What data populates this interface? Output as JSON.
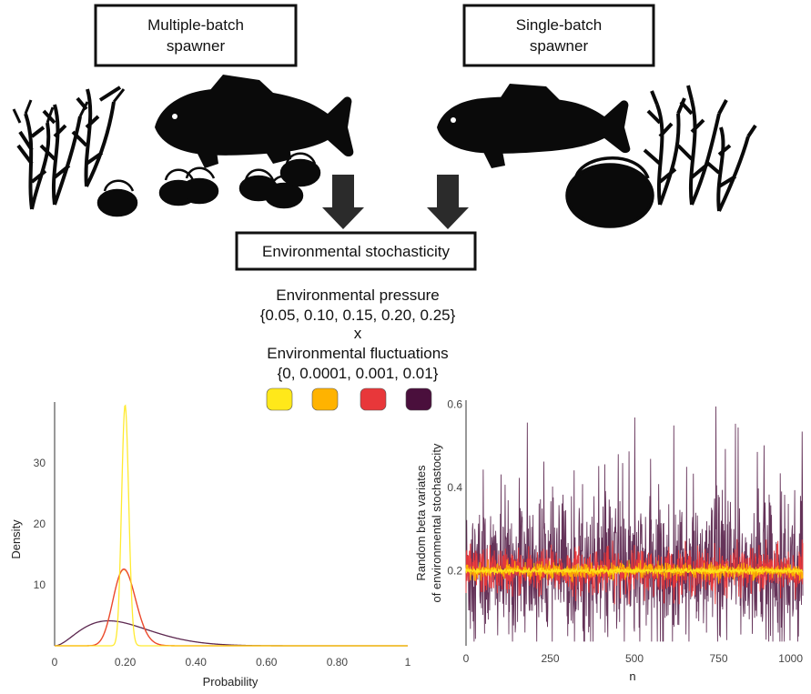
{
  "labels": {
    "multi_batch": [
      "Multiple-batch",
      "spawner"
    ],
    "single_batch": [
      "Single-batch",
      "spawner"
    ],
    "env_stochasticity": "Environmental stochasticity",
    "env_pressure": "Environmental pressure",
    "env_pressure_values": "{0.05, 0.10, 0.15, 0.20, 0.25}",
    "times_symbol": "x",
    "env_fluctuations": "Environmental fluctuations",
    "env_fluctuations_values": "{0, 0.0001, 0.001, 0.01}"
  },
  "palette": {
    "swatches": [
      "#ffe81a",
      "#ffb300",
      "#e8373a",
      "#4a0f3c"
    ],
    "silhouette": "#0a0a0a",
    "arrow": "#2b2b2b"
  },
  "chart_data": [
    {
      "type": "line",
      "xlabel": "Probability",
      "ylabel": "Density",
      "xlim": [
        0,
        1
      ],
      "ylim": [
        0,
        40
      ],
      "x_ticks": [
        0,
        0.2,
        0.4,
        0.6,
        0.8,
        1
      ],
      "x_tick_labels": [
        "0",
        "0.20",
        "0.40",
        "0.60",
        "0.80",
        "1"
      ],
      "y_ticks": [
        10,
        20,
        30
      ],
      "y_tick_labels": [
        "10",
        "20",
        "30"
      ],
      "grid": false,
      "series": [
        {
          "color": "#ffe81a",
          "mean": 0.2,
          "peak_density": 39.5
        },
        {
          "color": "#ffb300",
          "mean": 0.2,
          "peak_density": 12.5
        },
        {
          "color": "#e8373a",
          "mean": 0.2,
          "peak_density": 12.6
        },
        {
          "color": "#4a0f3c",
          "mean": 0.2,
          "peak_density": 4.1
        }
      ]
    },
    {
      "type": "line",
      "xlabel": "n",
      "ylabel": [
        "Random beta variates",
        "of environmental stochastocity"
      ],
      "xlim": [
        0,
        1000
      ],
      "ylim": [
        0.02,
        0.61
      ],
      "x_ticks": [
        0,
        250,
        500,
        750,
        1000
      ],
      "x_tick_labels": [
        "0",
        "250",
        "500",
        "750",
        "1000"
      ],
      "y_ticks": [
        0.2,
        0.4,
        0.6
      ],
      "y_tick_labels": [
        "0.2",
        "0.4",
        "0.6"
      ],
      "grid": false,
      "series": [
        {
          "color": "#4a0f3c",
          "mean": 0.2,
          "range": [
            0.03,
            0.6
          ]
        },
        {
          "color": "#e8373a",
          "mean": 0.2,
          "range": [
            0.12,
            0.3
          ]
        },
        {
          "color": "#ffb300",
          "mean": 0.2,
          "range": [
            0.17,
            0.23
          ]
        },
        {
          "color": "#ffe81a",
          "mean": 0.2,
          "range": [
            0.19,
            0.21
          ]
        }
      ]
    }
  ]
}
